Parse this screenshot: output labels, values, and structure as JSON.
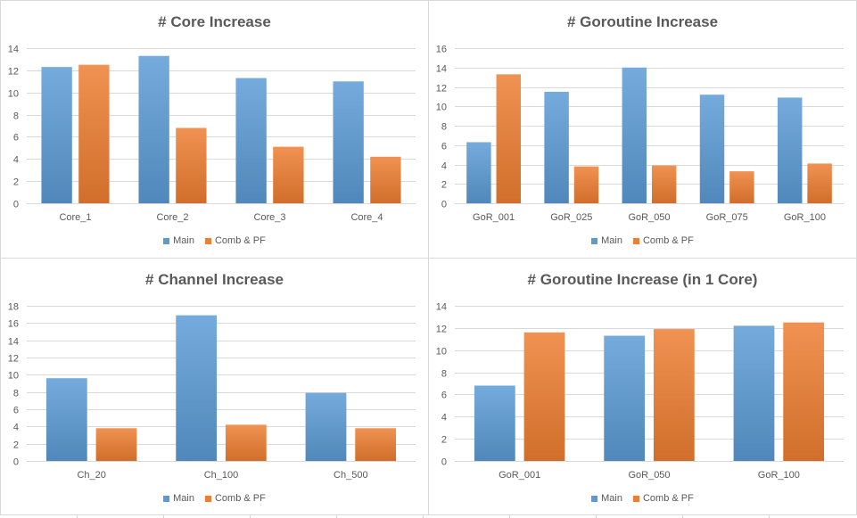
{
  "chart_data": [
    {
      "type": "bar",
      "title": "# Core Increase",
      "categories": [
        "Core_1",
        "Core_2",
        "Core_3",
        "Core_4"
      ],
      "series": [
        {
          "name": "Main",
          "color": "#5b9bd5",
          "values": [
            12.3,
            13.3,
            11.3,
            11.0
          ]
        },
        {
          "name": "Comb & PF",
          "color": "#ed7d31",
          "values": [
            12.5,
            6.8,
            5.1,
            4.2
          ]
        }
      ],
      "xlabel": "",
      "ylabel": "",
      "ylim": [
        0,
        14
      ],
      "yticks": [
        0,
        2,
        4,
        6,
        8,
        10,
        12,
        14
      ],
      "grid": true,
      "legend": "bottom"
    },
    {
      "type": "bar",
      "title": "# Goroutine Increase",
      "categories": [
        "GoR_001",
        "GoR_025",
        "GoR_050",
        "GoR_075",
        "GoR_100"
      ],
      "series": [
        {
          "name": "Main",
          "color": "#5b9bd5",
          "values": [
            6.3,
            11.5,
            14.0,
            11.2,
            10.9
          ]
        },
        {
          "name": "Comb & PF",
          "color": "#ed7d31",
          "values": [
            13.3,
            3.8,
            3.9,
            3.3,
            4.1
          ]
        }
      ],
      "xlabel": "",
      "ylabel": "",
      "ylim": [
        0,
        16
      ],
      "yticks": [
        0,
        2,
        4,
        6,
        8,
        10,
        12,
        14,
        16
      ],
      "grid": true,
      "legend": "bottom"
    },
    {
      "type": "bar",
      "title": "# Channel Increase",
      "categories": [
        "Ch_20",
        "Ch_100",
        "Ch_500"
      ],
      "series": [
        {
          "name": "Main",
          "color": "#5b9bd5",
          "values": [
            9.6,
            16.9,
            7.9
          ]
        },
        {
          "name": "Comb & PF",
          "color": "#ed7d31",
          "values": [
            3.8,
            4.2,
            3.8
          ]
        }
      ],
      "xlabel": "",
      "ylabel": "",
      "ylim": [
        0,
        18
      ],
      "yticks": [
        0,
        2,
        4,
        6,
        8,
        10,
        12,
        14,
        16,
        18
      ],
      "grid": true,
      "legend": "bottom"
    },
    {
      "type": "bar",
      "title": "# Goroutine Increase (in 1 Core)",
      "categories": [
        "GoR_001",
        "GoR_050",
        "GoR_100"
      ],
      "series": [
        {
          "name": "Main",
          "color": "#5b9bd5",
          "values": [
            6.8,
            11.3,
            12.2
          ]
        },
        {
          "name": "Comb & PF",
          "color": "#ed7d31",
          "values": [
            11.6,
            11.9,
            12.5
          ]
        }
      ],
      "xlabel": "",
      "ylabel": "",
      "ylim": [
        0,
        14
      ],
      "yticks": [
        0,
        2,
        4,
        6,
        8,
        10,
        12,
        14
      ],
      "grid": true,
      "legend": "bottom"
    }
  ]
}
